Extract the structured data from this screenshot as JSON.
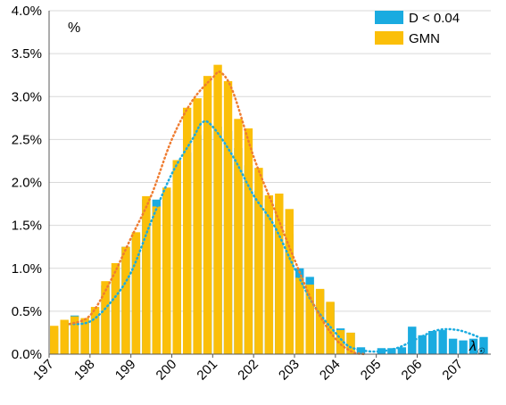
{
  "chart_data": {
    "type": "bar",
    "unit_label": "%",
    "axis_end_label": "λ",
    "axis_end_subscript": "☉",
    "x_ticks": [
      "197",
      "198",
      "199",
      "200",
      "201",
      "202",
      "203",
      "204",
      "205",
      "206",
      "207"
    ],
    "xlim": [
      197,
      207.8
    ],
    "ylim": [
      0,
      4.0
    ],
    "y_ticks": [
      "0.0%",
      "0.5%",
      "1.0%",
      "1.5%",
      "2.0%",
      "2.5%",
      "3.0%",
      "3.5%",
      "4.0%"
    ],
    "y_tick_values": [
      0,
      0.5,
      1.0,
      1.5,
      2.0,
      2.5,
      3.0,
      3.5,
      4.0
    ],
    "bin_width": 0.25,
    "x": [
      197.0,
      197.25,
      197.5,
      197.75,
      198.0,
      198.25,
      198.5,
      198.75,
      199.0,
      199.25,
      199.5,
      199.75,
      200.0,
      200.25,
      200.5,
      200.75,
      201.0,
      201.25,
      201.5,
      201.75,
      202.0,
      202.25,
      202.5,
      202.75,
      203.0,
      203.25,
      203.5,
      203.75,
      204.0,
      204.25,
      204.5,
      204.75,
      205.0,
      205.25,
      205.5,
      205.75,
      206.0,
      206.25,
      206.5,
      206.75,
      207.0,
      207.25,
      207.5
    ],
    "series": [
      {
        "name": "D < 0.04",
        "color": "#1aabe0",
        "values": [
          0.3,
          0.38,
          0.45,
          0.4,
          0.5,
          0.8,
          1.0,
          1.25,
          1.4,
          1.8,
          1.8,
          1.9,
          2.25,
          2.35,
          2.55,
          2.6,
          2.65,
          2.6,
          2.4,
          2.2,
          1.9,
          1.8,
          1.75,
          1.4,
          1.0,
          0.9,
          0.75,
          0.6,
          0.3,
          0.25,
          0.08,
          0.0,
          0.07,
          0.07,
          0.08,
          0.32,
          0.22,
          0.27,
          0.28,
          0.18,
          0.16,
          0.18,
          0.2
        ]
      },
      {
        "name": "GMN",
        "color": "#fbbf09",
        "values": [
          0.33,
          0.4,
          0.44,
          0.42,
          0.55,
          0.85,
          1.06,
          1.25,
          1.42,
          1.84,
          1.72,
          1.94,
          2.26,
          2.87,
          2.98,
          3.24,
          3.37,
          3.18,
          2.74,
          2.63,
          2.17,
          1.85,
          1.87,
          1.69,
          0.89,
          0.81,
          0.76,
          0.61,
          0.28,
          0.25,
          0.0,
          0.0,
          0.0,
          0.0,
          0.0,
          0.0,
          0.0,
          0.0,
          0.0,
          0.0,
          0.0,
          0.0,
          0.0
        ]
      }
    ],
    "fit_lines": [
      {
        "color": "#1aabe0",
        "style": "dotted",
        "x": [
          197.5,
          198.0,
          198.5,
          199.0,
          199.5,
          200.0,
          200.5,
          200.75,
          201.0,
          201.5,
          202.0,
          202.5,
          203.0,
          203.5,
          204.0,
          204.3,
          204.6,
          205.0,
          205.5,
          206.0,
          206.5,
          207.0,
          207.5
        ],
        "y": [
          0.35,
          0.38,
          0.6,
          0.95,
          1.55,
          2.1,
          2.5,
          2.7,
          2.65,
          2.3,
          1.85,
          1.5,
          1.0,
          0.55,
          0.25,
          0.1,
          0.05,
          0.03,
          0.07,
          0.18,
          0.28,
          0.28,
          0.2
        ]
      },
      {
        "color": "#ef7c31",
        "style": "dotted",
        "x": [
          197.5,
          198.0,
          198.5,
          199.0,
          199.5,
          200.0,
          200.5,
          201.0,
          201.2,
          201.5,
          202.0,
          202.5,
          203.0,
          203.5,
          204.0,
          204.4,
          204.7
        ],
        "y": [
          0.35,
          0.45,
          0.85,
          1.35,
          1.85,
          2.5,
          2.95,
          3.22,
          3.28,
          3.05,
          2.3,
          1.7,
          1.1,
          0.55,
          0.18,
          0.03,
          0.0
        ]
      }
    ],
    "grid": "horizontal",
    "legend_position": "top-right"
  }
}
